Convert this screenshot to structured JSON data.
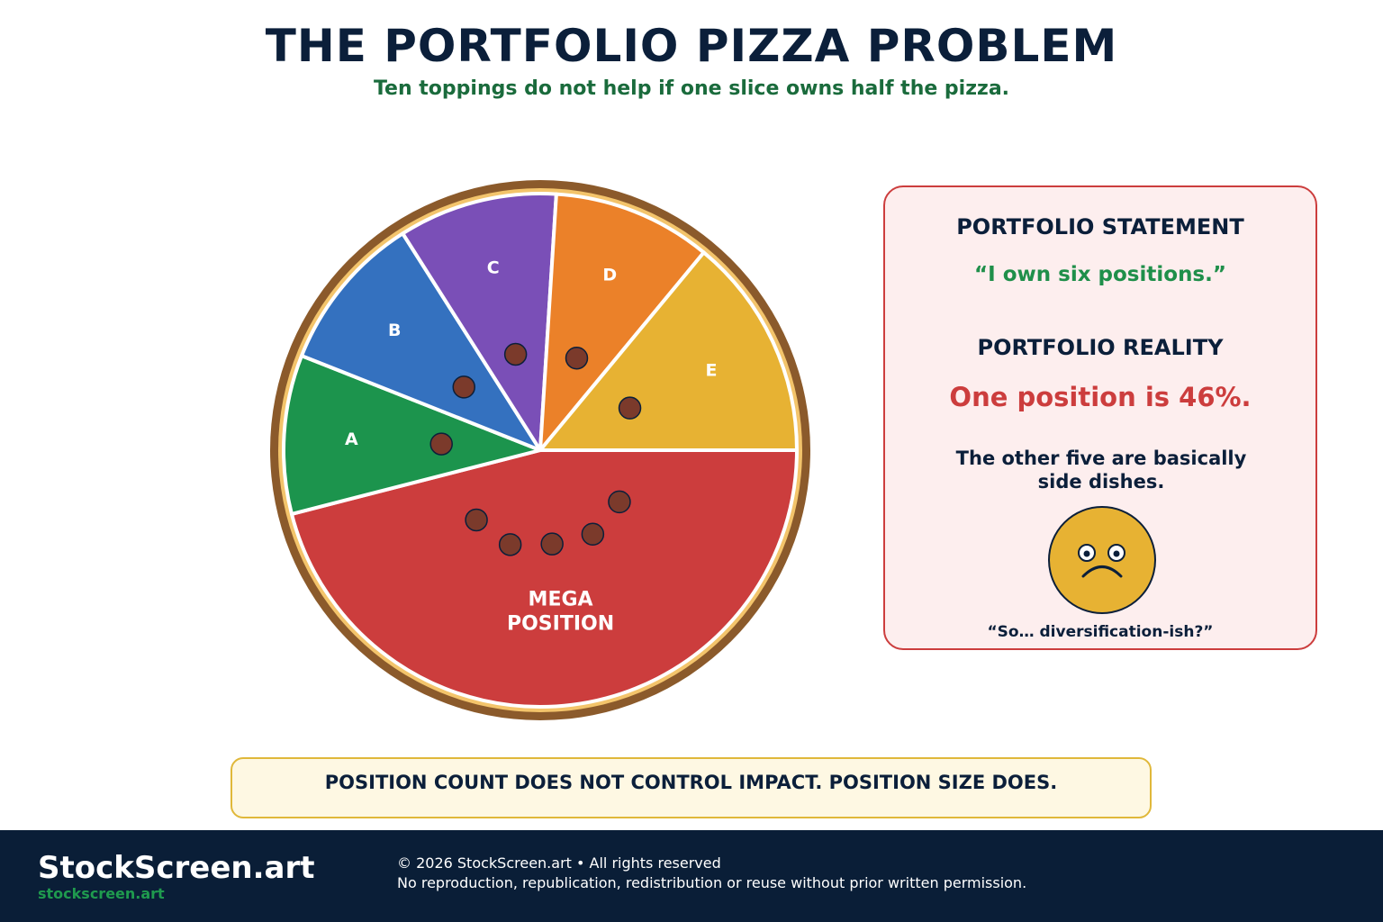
{
  "header": {
    "title": "THE PORTFOLIO PIZZA PROBLEM",
    "subtitle": "Ten toppings do not help if one slice owns half the pizza."
  },
  "chart_data": {
    "type": "pie",
    "title": "",
    "slices": [
      {
        "label": "MEGA POSITION",
        "label_lines": [
          "MEGA",
          "POSITION"
        ],
        "value": 46,
        "color": "#cc3d3d",
        "toppings": 5
      },
      {
        "label": "A",
        "value": 10,
        "color": "#1c944d",
        "toppings": 1
      },
      {
        "label": "B",
        "value": 10,
        "color": "#3471bf",
        "toppings": 1
      },
      {
        "label": "C",
        "value": 10,
        "color": "#7a4fb7",
        "toppings": 1
      },
      {
        "label": "D",
        "value": 10,
        "color": "#eb8129",
        "toppings": 1
      },
      {
        "label": "E",
        "value": 14,
        "color": "#e7b233",
        "toppings": 1
      }
    ],
    "crust_color": "#8b5a2b",
    "crust_inner_color": "#f3c46b",
    "topping_color": "#7b3a2b"
  },
  "panel": {
    "statement_heading": "PORTFOLIO STATEMENT",
    "statement_quote": "“I own six positions.”",
    "reality_heading": "PORTFOLIO REALITY",
    "reality_text": "One position is 46%.",
    "note_line1": "The other five are basically",
    "note_line2": "side dishes.",
    "face_icon": "worried-face-icon",
    "caption": "“So… diversification-ish?”"
  },
  "banner": {
    "text": "POSITION COUNT DOES NOT CONTROL IMPACT. POSITION SIZE DOES."
  },
  "footer": {
    "brand": "StockScreen.art",
    "url": "stockscreen.art",
    "copyright": "© 2026 StockScreen.art • All rights reserved",
    "notice": "No reproduction, republication, redistribution or reuse without prior written permission."
  }
}
